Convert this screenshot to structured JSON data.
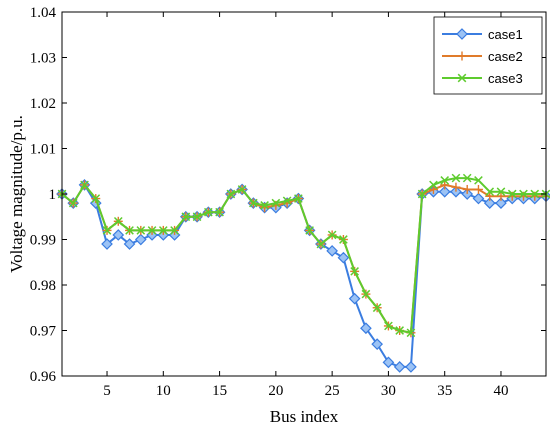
{
  "chart_data": {
    "type": "line",
    "xlabel": "Bus index",
    "ylabel": "Voltage magnitude/p.u.",
    "xlim": [
      1,
      44
    ],
    "ylim": [
      0.96,
      1.04
    ],
    "xticks": [
      5,
      10,
      15,
      20,
      25,
      30,
      35,
      40
    ],
    "yticks": [
      0.96,
      0.97,
      0.98,
      0.99,
      1,
      1.01,
      1.02,
      1.03,
      1.04
    ],
    "ytick_labels": [
      "0.96",
      "0.97",
      "0.98",
      "0.99",
      "1",
      "1.01",
      "1.02",
      "1.03",
      "1.04"
    ],
    "legend_position": "top-right",
    "grid": false,
    "x": [
      1,
      2,
      3,
      4,
      5,
      6,
      7,
      8,
      9,
      10,
      11,
      12,
      13,
      14,
      15,
      16,
      17,
      18,
      19,
      20,
      21,
      22,
      23,
      24,
      25,
      26,
      27,
      28,
      29,
      30,
      31,
      32,
      33,
      34,
      35,
      36,
      37,
      38,
      39,
      40,
      41,
      42,
      43,
      44
    ],
    "series": [
      {
        "name": "case1",
        "color": "#3b7de0",
        "marker": "diamond",
        "values": [
          1.0,
          0.998,
          1.002,
          0.998,
          0.989,
          0.991,
          0.989,
          0.99,
          0.991,
          0.991,
          0.991,
          0.995,
          0.995,
          0.996,
          0.996,
          1.0,
          1.001,
          0.998,
          0.997,
          0.997,
          0.998,
          0.999,
          0.992,
          0.989,
          0.9875,
          0.986,
          0.977,
          0.9705,
          0.967,
          0.963,
          0.962,
          0.962,
          1.0,
          1.0005,
          1.0005,
          1.0005,
          1.0,
          0.999,
          0.998,
          0.998,
          0.999,
          0.999,
          0.999,
          0.9995
        ]
      },
      {
        "name": "case2",
        "color": "#e07b2a",
        "marker": "plus",
        "values": [
          1.0,
          0.998,
          1.002,
          0.999,
          0.992,
          0.994,
          0.992,
          0.992,
          0.992,
          0.992,
          0.992,
          0.995,
          0.995,
          0.996,
          0.996,
          1.0,
          1.001,
          0.998,
          0.997,
          0.9975,
          0.998,
          0.999,
          0.992,
          0.989,
          0.991,
          0.99,
          0.983,
          0.978,
          0.975,
          0.971,
          0.97,
          0.9695,
          1.0,
          1.001,
          1.002,
          1.0015,
          1.001,
          1.001,
          0.9995,
          0.9995,
          0.9995,
          0.9995,
          0.9995,
          0.9995
        ]
      },
      {
        "name": "case3",
        "color": "#5ecb2e",
        "marker": "x",
        "values": [
          1.0,
          0.998,
          1.002,
          0.999,
          0.992,
          0.994,
          0.992,
          0.992,
          0.992,
          0.992,
          0.992,
          0.995,
          0.995,
          0.996,
          0.996,
          1.0,
          1.001,
          0.998,
          0.9975,
          0.998,
          0.9985,
          0.999,
          0.992,
          0.989,
          0.991,
          0.99,
          0.983,
          0.978,
          0.975,
          0.971,
          0.97,
          0.9695,
          1.0,
          1.002,
          1.003,
          1.0035,
          1.0035,
          1.003,
          1.0005,
          1.0005,
          1.0,
          1.0,
          1.0,
          1.0
        ]
      }
    ]
  }
}
